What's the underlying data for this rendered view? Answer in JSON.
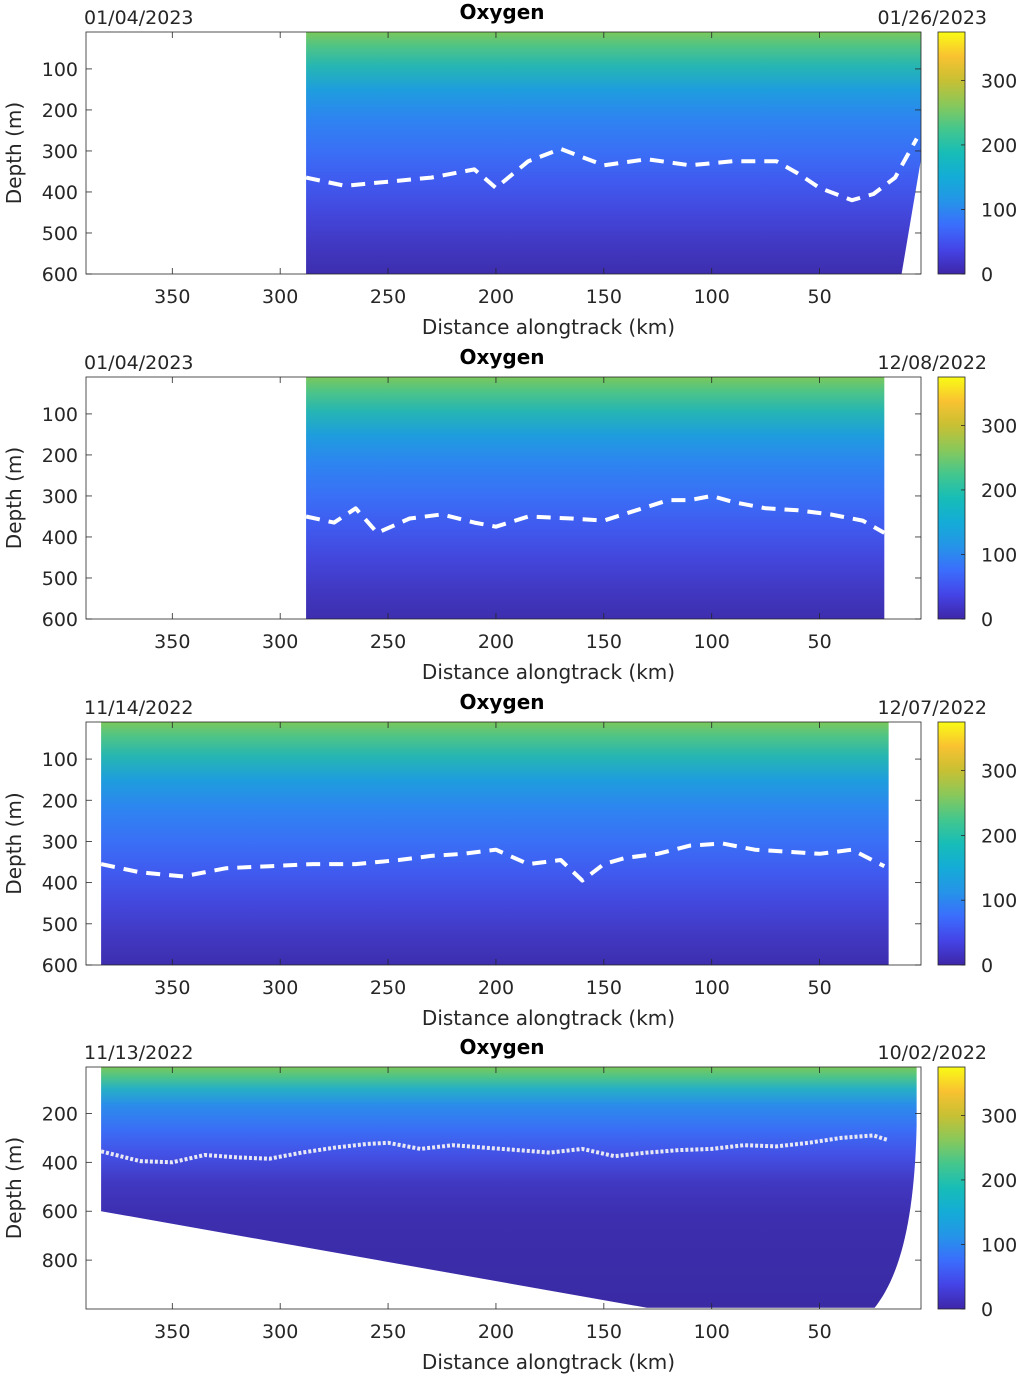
{
  "chart_data": [
    {
      "type": "heatmap",
      "title": "Oxygen",
      "date_left": "01/04/2023",
      "date_right": "01/26/2023",
      "xlabel": "Distance alongtrack (km)",
      "ylabel": "Depth (m)",
      "xlim": [
        390,
        3
      ],
      "ylim": [
        600,
        10
      ],
      "x_ticks": [
        "350",
        "300",
        "250",
        "200",
        "150",
        "100",
        "50"
      ],
      "y_ticks": [
        "100",
        "200",
        "300",
        "400",
        "500",
        "600"
      ],
      "colorbar_ticks": [
        "300",
        "200",
        "100",
        "0"
      ],
      "colorbar_range": [
        0,
        375
      ],
      "colormap": "parula",
      "data_extent_x": [
        288,
        5
      ],
      "contour_line": {
        "style": "dashed",
        "x": [
          288,
          270,
          250,
          230,
          210,
          200,
          185,
          170,
          150,
          130,
          110,
          90,
          70,
          60,
          50,
          35,
          25,
          15,
          5
        ],
        "depth": [
          365,
          385,
          375,
          365,
          345,
          390,
          325,
          295,
          335,
          320,
          335,
          325,
          325,
          355,
          390,
          420,
          405,
          365,
          270
        ]
      }
    },
    {
      "type": "heatmap",
      "title": "Oxygen",
      "date_left": "01/04/2023",
      "date_right": "12/08/2022",
      "xlabel": "Distance alongtrack (km)",
      "ylabel": "Depth (m)",
      "xlim": [
        390,
        3
      ],
      "ylim": [
        600,
        10
      ],
      "x_ticks": [
        "350",
        "300",
        "250",
        "200",
        "150",
        "100",
        "50"
      ],
      "y_ticks": [
        "100",
        "200",
        "300",
        "400",
        "500",
        "600"
      ],
      "colorbar_ticks": [
        "300",
        "200",
        "100",
        "0"
      ],
      "colorbar_range": [
        0,
        375
      ],
      "colormap": "parula",
      "data_extent_x": [
        288,
        20
      ],
      "contour_line": {
        "style": "dashed",
        "x": [
          288,
          275,
          265,
          255,
          240,
          225,
          210,
          200,
          185,
          165,
          150,
          135,
          120,
          110,
          100,
          90,
          75,
          60,
          45,
          30,
          20
        ],
        "depth": [
          350,
          365,
          330,
          390,
          355,
          345,
          365,
          375,
          350,
          355,
          360,
          335,
          310,
          310,
          300,
          315,
          330,
          335,
          345,
          360,
          390
        ]
      }
    },
    {
      "type": "heatmap",
      "title": "Oxygen",
      "date_left": "11/14/2022",
      "date_right": "12/07/2022",
      "xlabel": "Distance alongtrack (km)",
      "ylabel": "Depth (m)",
      "xlim": [
        390,
        3
      ],
      "ylim": [
        600,
        10
      ],
      "x_ticks": [
        "350",
        "300",
        "250",
        "200",
        "150",
        "100",
        "50"
      ],
      "y_ticks": [
        "100",
        "200",
        "300",
        "400",
        "500",
        "600"
      ],
      "colorbar_ticks": [
        "300",
        "200",
        "100",
        "0"
      ],
      "colorbar_range": [
        0,
        375
      ],
      "colormap": "parula",
      "data_extent_x": [
        383,
        18
      ],
      "contour_line": {
        "style": "dashed",
        "x": [
          383,
          365,
          345,
          325,
          305,
          285,
          265,
          245,
          230,
          215,
          200,
          185,
          170,
          160,
          150,
          140,
          125,
          110,
          95,
          80,
          65,
          50,
          35,
          20
        ],
        "depth": [
          355,
          375,
          385,
          365,
          360,
          355,
          355,
          345,
          335,
          330,
          320,
          355,
          345,
          395,
          355,
          340,
          330,
          310,
          305,
          320,
          325,
          330,
          320,
          360
        ]
      }
    },
    {
      "type": "heatmap",
      "title": "Oxygen",
      "date_left": "11/13/2022",
      "date_right": "10/02/2022",
      "xlabel": "Distance alongtrack (km)",
      "ylabel": "Depth (m)",
      "xlim": [
        390,
        3
      ],
      "ylim": [
        1000,
        10
      ],
      "x_ticks": [
        "350",
        "300",
        "250",
        "200",
        "150",
        "100",
        "50"
      ],
      "y_ticks": [
        "200",
        "400",
        "600",
        "800"
      ],
      "colorbar_ticks": [
        "300",
        "200",
        "100",
        "0"
      ],
      "colorbar_range": [
        0,
        375
      ],
      "colormap": "parula",
      "data_extent_x": [
        383,
        18
      ],
      "contour_line": {
        "style": "solid-wavy",
        "x": [
          383,
          365,
          350,
          335,
          320,
          305,
          290,
          275,
          260,
          250,
          235,
          220,
          205,
          190,
          175,
          160,
          145,
          130,
          115,
          100,
          85,
          70,
          55,
          40,
          25,
          18
        ],
        "depth": [
          355,
          395,
          400,
          370,
          380,
          385,
          360,
          340,
          325,
          320,
          345,
          330,
          340,
          350,
          360,
          345,
          375,
          360,
          350,
          345,
          330,
          335,
          320,
          300,
          290,
          310
        ]
      }
    }
  ]
}
